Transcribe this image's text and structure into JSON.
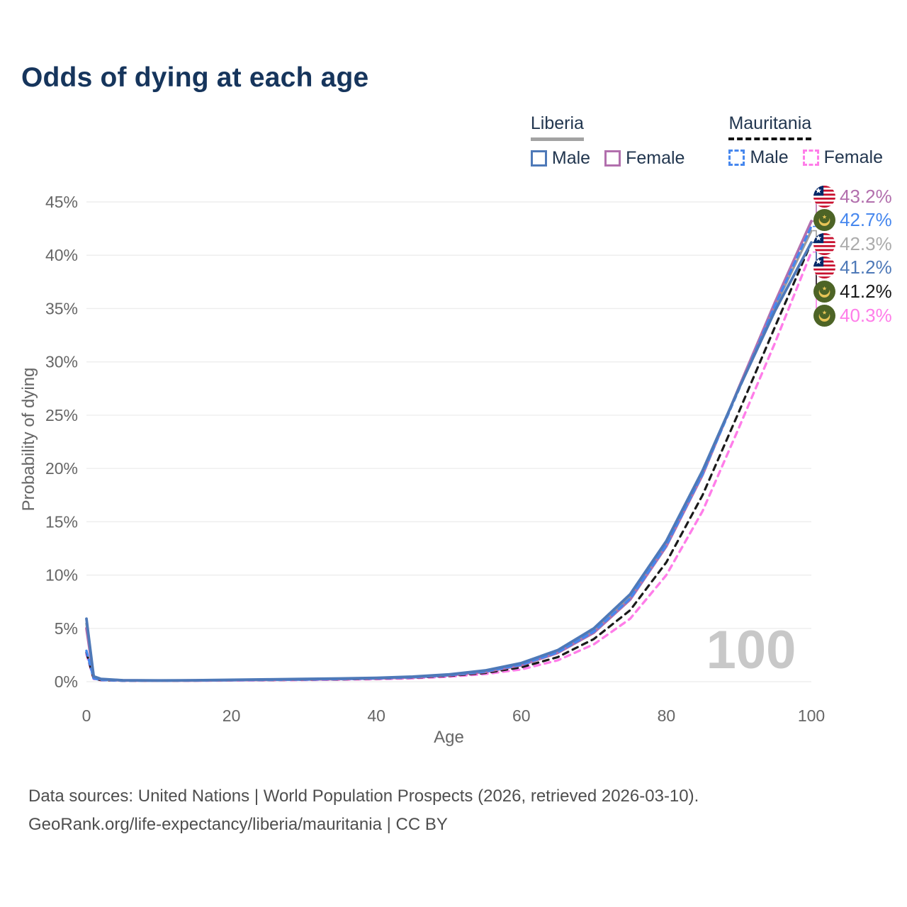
{
  "title": "Odds of dying at each age",
  "legend": {
    "groups": [
      {
        "label": "Liberia",
        "underline": "solid-gray",
        "items": [
          {
            "label": "Male"
          },
          {
            "label": "Female"
          }
        ]
      },
      {
        "label": "Mauritania",
        "underline": "dashed-black",
        "items": [
          {
            "label": "Male"
          },
          {
            "label": "Female"
          }
        ]
      }
    ]
  },
  "footer": {
    "line1": "Data sources: United Nations | World Population Prospects (2026, retrieved 2026-03-10).",
    "line2": "GeoRank.org/life-expectancy/liberia/mauritania | CC BY"
  },
  "colors": {
    "title": "#16355c",
    "axis_text": "#666666",
    "grid": "#ededed",
    "watermark": "#c8c8c8",
    "liberia_male": "#4e79b8",
    "liberia_female": "#b26fad",
    "liberia_both": "#9b9b9b",
    "mauritania_male": "#4687ee",
    "mauritania_both": "#1a1a1a",
    "mauritania_female": "#ff7de9"
  },
  "chart_data": {
    "type": "line",
    "title": "Odds of dying at each age",
    "xlabel": "Age",
    "ylabel": "Probability of dying",
    "xlim": [
      0,
      100
    ],
    "ylim_percent": [
      0,
      45
    ],
    "xticks": [
      0,
      20,
      40,
      60,
      80,
      100
    ],
    "yticks_percent": [
      0,
      5,
      10,
      15,
      20,
      25,
      30,
      35,
      40,
      45
    ],
    "grid": true,
    "watermark": "100",
    "x": [
      0,
      1,
      2,
      5,
      10,
      15,
      20,
      25,
      30,
      35,
      40,
      45,
      50,
      55,
      60,
      65,
      70,
      75,
      80,
      85,
      90,
      95,
      100
    ],
    "series": [
      {
        "name": "Mauritania Female",
        "country": "mauritania",
        "sex": "female",
        "color": "#ff7de9",
        "dash": "8 7",
        "width": 3.4,
        "end_label": "40.3%",
        "label_color": "#ff7de9",
        "label_row": 5,
        "values": [
          2.6,
          0.26,
          0.14,
          0.09,
          0.08,
          0.09,
          0.11,
          0.135,
          0.16,
          0.19,
          0.24,
          0.32,
          0.47,
          0.72,
          1.15,
          2.0,
          3.5,
          5.9,
          10.0,
          16.0,
          23.8,
          31.8,
          40.3
        ]
      },
      {
        "name": "Mauritania",
        "country": "mauritania",
        "sex": "both",
        "color": "#1a1a1a",
        "dash": "8 7",
        "width": 3.2,
        "end_label": "41.2%",
        "label_color": "#1a1a1a",
        "label_row": 4,
        "values": [
          2.75,
          0.28,
          0.15,
          0.095,
          0.085,
          0.1,
          0.13,
          0.155,
          0.185,
          0.22,
          0.28,
          0.37,
          0.54,
          0.82,
          1.35,
          2.3,
          4.0,
          6.7,
          11.2,
          17.5,
          25.3,
          33.3,
          41.2
        ]
      },
      {
        "name": "Liberia",
        "country": "liberia",
        "sex": "both",
        "color": "#9b9b9b",
        "dash": null,
        "width": 3.4,
        "end_label": "42.3%",
        "label_color": "#ababab",
        "label_row": 2,
        "values": [
          5.45,
          0.47,
          0.23,
          0.125,
          0.105,
          0.12,
          0.155,
          0.19,
          0.23,
          0.275,
          0.335,
          0.44,
          0.64,
          0.98,
          1.65,
          2.82,
          4.8,
          7.95,
          12.95,
          19.6,
          27.5,
          35.2,
          42.3
        ]
      },
      {
        "name": "Liberia Female",
        "country": "liberia",
        "sex": "female",
        "color": "#b26fad",
        "dash": null,
        "width": 3.8,
        "end_label": "43.2%",
        "label_color": "#b26fad",
        "label_row": 0,
        "values": [
          5.0,
          0.45,
          0.22,
          0.12,
          0.1,
          0.11,
          0.14,
          0.17,
          0.21,
          0.25,
          0.31,
          0.41,
          0.6,
          0.92,
          1.55,
          2.7,
          4.6,
          7.7,
          12.7,
          19.4,
          27.6,
          35.6,
          43.2
        ]
      },
      {
        "name": "Mauritania Male",
        "country": "mauritania",
        "sex": "male",
        "color": "#4687ee",
        "dash": "7 6",
        "width": 3.4,
        "end_label": "42.7%",
        "label_color": "#4687ee",
        "label_row": 1,
        "values": [
          2.9,
          0.3,
          0.16,
          0.1,
          0.09,
          0.11,
          0.14,
          0.17,
          0.2,
          0.25,
          0.31,
          0.42,
          0.62,
          0.95,
          1.6,
          2.75,
          4.7,
          7.8,
          12.8,
          19.5,
          27.4,
          35.3,
          42.7
        ]
      },
      {
        "name": "Liberia Male",
        "country": "liberia",
        "sex": "male",
        "color": "#4e79b8",
        "dash": null,
        "width": 3.8,
        "end_label": "41.2%",
        "label_color": "#4e79b8",
        "label_row": 3,
        "values": [
          5.9,
          0.5,
          0.25,
          0.13,
          0.11,
          0.13,
          0.17,
          0.21,
          0.25,
          0.3,
          0.36,
          0.47,
          0.68,
          1.05,
          1.75,
          2.95,
          5.0,
          8.2,
          13.2,
          19.8,
          27.5,
          34.8,
          41.2
        ]
      }
    ]
  }
}
